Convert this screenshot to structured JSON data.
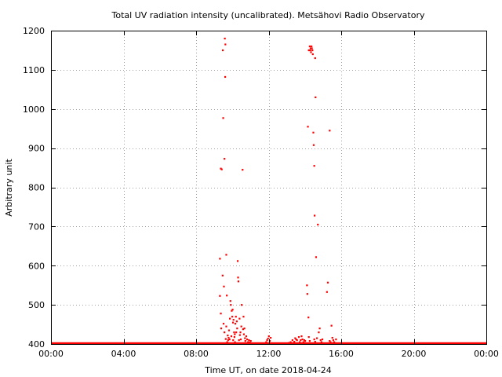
{
  "chart_data": {
    "type": "scatter",
    "title": "Total UV radiation intensity (uncalibrated). Metsähovi Radio Observatory",
    "xlabel": "Time UT, on date 2018-04-24",
    "ylabel": "Arbitrary unit",
    "xlim": [
      0,
      24
    ],
    "ylim": [
      400,
      1200
    ],
    "x_ticks": [
      {
        "value": 0,
        "label": "00:00"
      },
      {
        "value": 4,
        "label": "04:00"
      },
      {
        "value": 8,
        "label": "08:00"
      },
      {
        "value": 12,
        "label": "12:00"
      },
      {
        "value": 16,
        "label": "16:00"
      },
      {
        "value": 20,
        "label": "20:00"
      },
      {
        "value": 24,
        "label": "00:00"
      }
    ],
    "y_ticks": [
      {
        "value": 400,
        "label": "400"
      },
      {
        "value": 500,
        "label": "500"
      },
      {
        "value": 600,
        "label": "600"
      },
      {
        "value": 700,
        "label": "700"
      },
      {
        "value": 800,
        "label": "800"
      },
      {
        "value": 900,
        "label": "900"
      },
      {
        "value": 1000,
        "label": "1000"
      },
      {
        "value": 1100,
        "label": "1100"
      },
      {
        "value": 1200,
        "label": "1200"
      }
    ],
    "grid": true,
    "series": [
      {
        "color": "#ff0000",
        "baseline": {
          "value": 400,
          "x_start": 0,
          "x_end": 24
        },
        "points": [
          [
            9.31,
            618
          ],
          [
            9.31,
            523
          ],
          [
            9.36,
            848
          ],
          [
            9.41,
            846
          ],
          [
            9.46,
            575
          ],
          [
            9.47,
            1150
          ],
          [
            9.49,
            977
          ],
          [
            9.53,
            547
          ],
          [
            9.56,
            873
          ],
          [
            9.58,
            1180
          ],
          [
            9.6,
            1082
          ],
          [
            9.61,
            1165
          ],
          [
            9.66,
            628
          ],
          [
            9.69,
            524
          ],
          [
            9.36,
            478
          ],
          [
            9.38,
            440
          ],
          [
            9.51,
            452
          ],
          [
            9.56,
            430
          ],
          [
            9.63,
            413
          ],
          [
            9.66,
            445
          ],
          [
            9.71,
            405
          ],
          [
            9.74,
            422
          ],
          [
            9.76,
            410
          ],
          [
            9.81,
            435
          ],
          [
            9.86,
            465
          ],
          [
            9.89,
            510
          ],
          [
            9.91,
            500
          ],
          [
            9.96,
            485
          ],
          [
            9.99,
            470
          ],
          [
            10.01,
            488
          ],
          [
            10.03,
            455
          ],
          [
            10.06,
            462
          ],
          [
            10.09,
            430
          ],
          [
            10.11,
            418
          ],
          [
            10.13,
            425
          ],
          [
            10.16,
            452
          ],
          [
            10.19,
            470
          ],
          [
            10.21,
            430
          ],
          [
            10.24,
            458
          ],
          [
            10.26,
            440
          ],
          [
            10.29,
            612
          ],
          [
            10.31,
            570
          ],
          [
            10.33,
            560
          ],
          [
            10.36,
            410
          ],
          [
            10.39,
            465
          ],
          [
            10.41,
            423
          ],
          [
            10.44,
            430
          ],
          [
            10.46,
            412
          ],
          [
            10.49,
            445
          ],
          [
            10.51,
            500
          ],
          [
            10.56,
            845
          ],
          [
            10.59,
            438
          ],
          [
            10.61,
            470
          ],
          [
            10.63,
            425
          ],
          [
            10.66,
            440
          ],
          [
            10.69,
            415
          ],
          [
            10.71,
            408
          ],
          [
            10.76,
            420
          ],
          [
            10.81,
            412
          ],
          [
            10.86,
            405
          ],
          [
            10.91,
            410
          ],
          [
            10.96,
            404
          ],
          [
            11.01,
            408
          ],
          [
            9.79,
            416
          ],
          [
            9.84,
            412
          ],
          [
            9.94,
            420
          ],
          [
            10.04,
            410
          ],
          [
            10.14,
            405
          ],
          [
            11.86,
            405
          ],
          [
            11.91,
            410
          ],
          [
            11.96,
            414
          ],
          [
            12.01,
            420
          ],
          [
            12.06,
            408
          ],
          [
            12.11,
            416
          ],
          [
            13.11,
            403
          ],
          [
            13.21,
            405
          ],
          [
            13.31,
            410
          ],
          [
            13.41,
            406
          ],
          [
            13.46,
            415
          ],
          [
            13.51,
            412
          ],
          [
            13.56,
            410
          ],
          [
            13.66,
            418
          ],
          [
            13.71,
            405
          ],
          [
            13.76,
            410
          ],
          [
            13.81,
            420
          ],
          [
            13.86,
            412
          ],
          [
            13.91,
            405
          ],
          [
            13.96,
            410
          ],
          [
            14.01,
            408
          ],
          [
            14.11,
            550
          ],
          [
            14.13,
            528
          ],
          [
            14.16,
            955
          ],
          [
            14.19,
            468
          ],
          [
            14.21,
            1150
          ],
          [
            14.26,
            1160
          ],
          [
            14.29,
            1150
          ],
          [
            14.31,
            1155
          ],
          [
            14.33,
            1145
          ],
          [
            14.36,
            1160
          ],
          [
            14.38,
            1155
          ],
          [
            14.41,
            1150
          ],
          [
            14.43,
            1140
          ],
          [
            14.46,
            940
          ],
          [
            14.48,
            908
          ],
          [
            14.51,
            855
          ],
          [
            14.53,
            728
          ],
          [
            14.56,
            1130
          ],
          [
            14.58,
            1030
          ],
          [
            14.61,
            622
          ],
          [
            14.71,
            705
          ],
          [
            14.76,
            430
          ],
          [
            14.81,
            440
          ],
          [
            14.86,
            410
          ],
          [
            14.91,
            405
          ],
          [
            14.96,
            412
          ],
          [
            14.51,
            412
          ],
          [
            14.56,
            406
          ],
          [
            14.66,
            415
          ],
          [
            14.26,
            408
          ],
          [
            14.21,
            418
          ],
          [
            15.21,
            533
          ],
          [
            15.26,
            557
          ],
          [
            15.36,
            945
          ],
          [
            15.46,
            447
          ],
          [
            15.51,
            416
          ],
          [
            15.56,
            410
          ],
          [
            15.61,
            405
          ],
          [
            15.71,
            412
          ],
          [
            15.36,
            408
          ],
          [
            15.41,
            405
          ]
        ]
      }
    ]
  }
}
